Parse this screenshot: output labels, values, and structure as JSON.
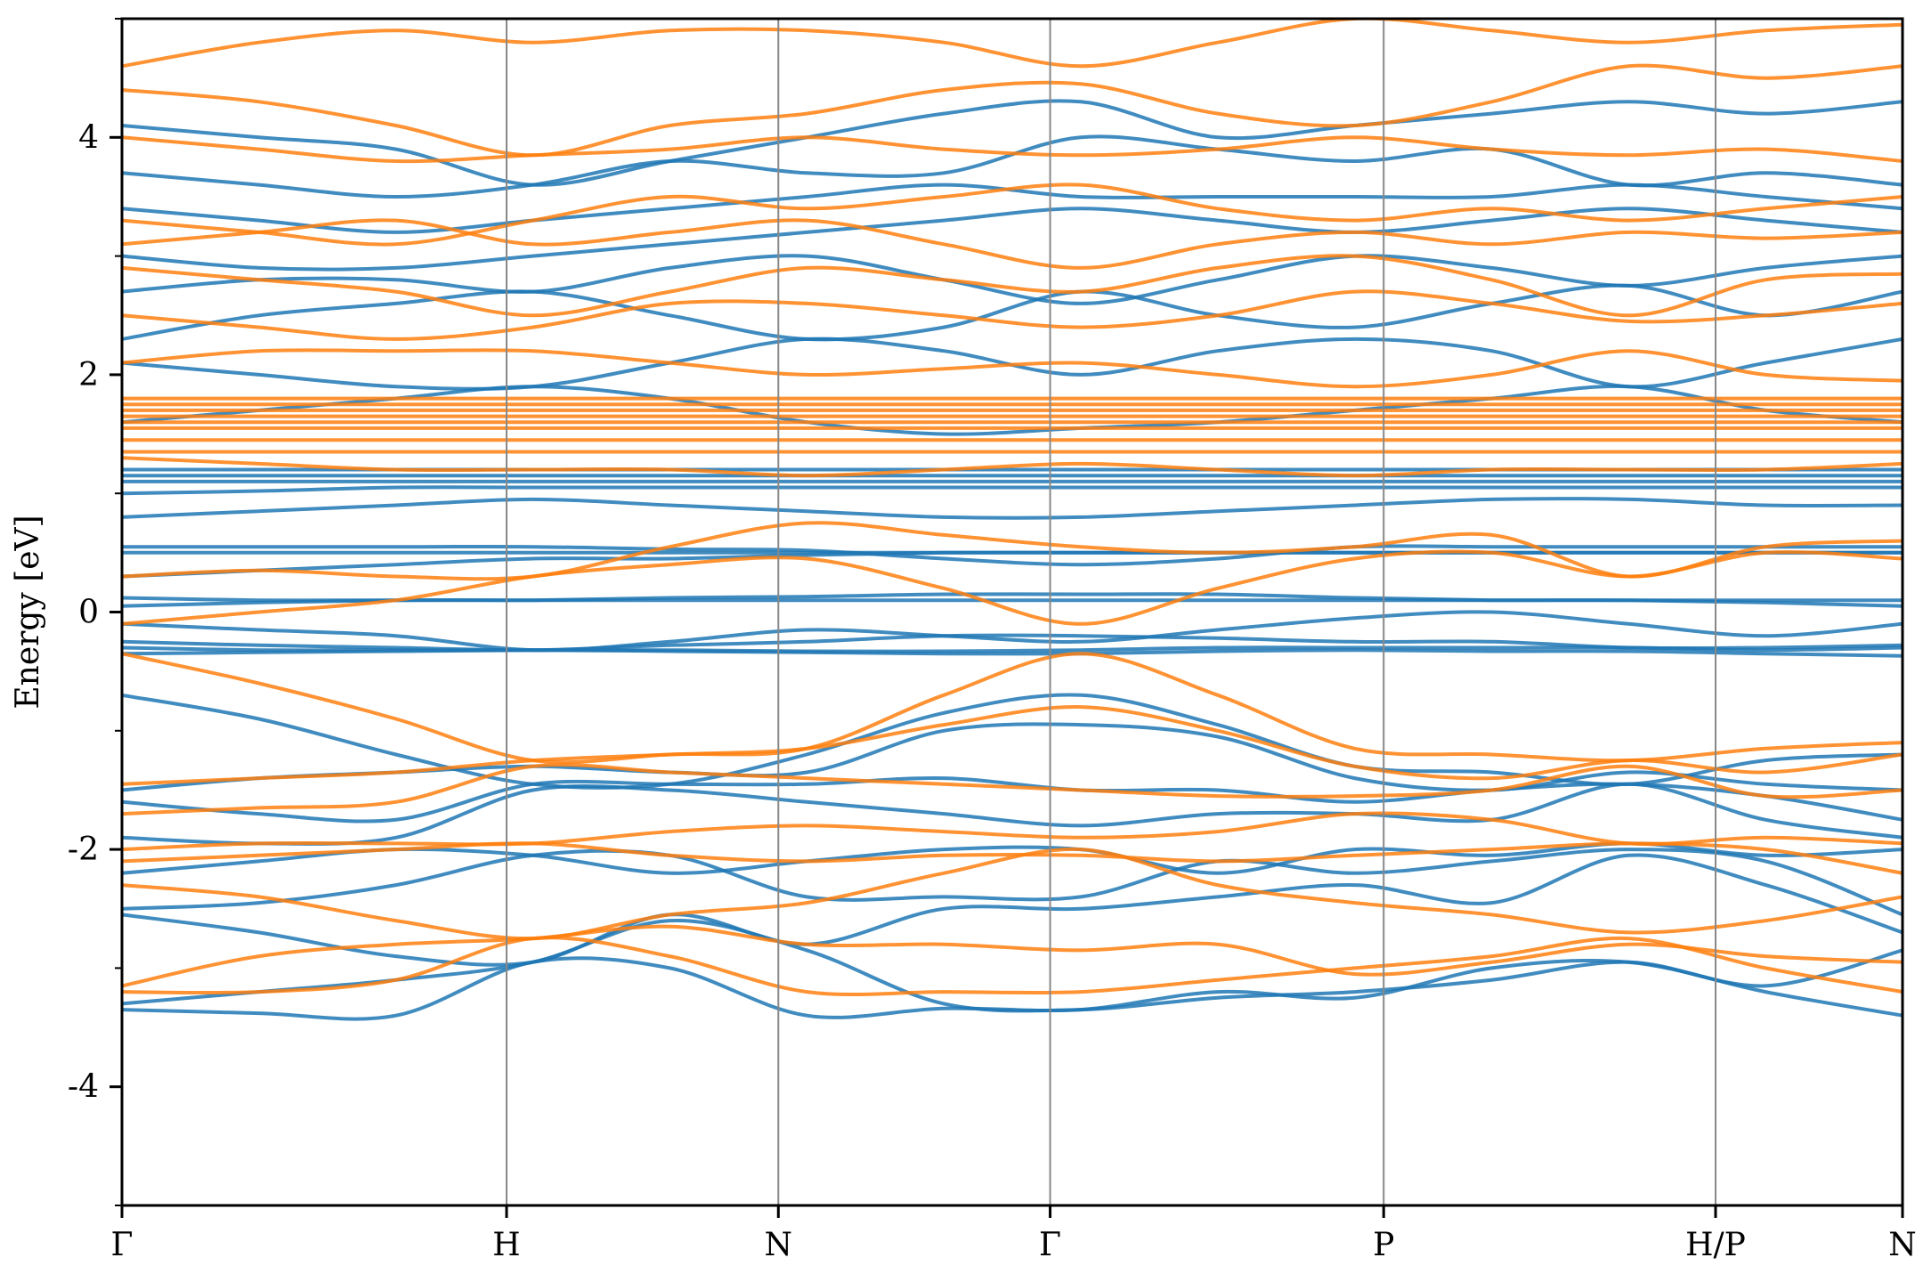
{
  "chart_data": {
    "type": "line",
    "title": "",
    "xlabel": "",
    "ylabel": "Energy [eV]",
    "ylim": [
      -5,
      5
    ],
    "xlim": [
      0,
      2162
    ],
    "grid": false,
    "legend": "none",
    "yticks": [
      {
        "value": -4,
        "label": "-4"
      },
      {
        "value": -2,
        "label": "-2"
      },
      {
        "value": 0,
        "label": "0"
      },
      {
        "value": 2,
        "label": "2"
      },
      {
        "value": 4,
        "label": "4"
      }
    ],
    "yticks_minor": [
      -5,
      -3,
      -1,
      1,
      3,
      5
    ],
    "kpoints": [
      {
        "label": "Γ",
        "x": 0
      },
      {
        "label": "H",
        "x": 467
      },
      {
        "label": "N",
        "x": 797
      },
      {
        "label": "Γ",
        "x": 1127
      },
      {
        "label": "P",
        "x": 1532
      },
      {
        "label": "H/P",
        "x": 1935
      },
      {
        "label": "N",
        "x": 2162
      }
    ],
    "colors": {
      "spin_up": "#1f77b4",
      "spin_down": "#ff7f0e",
      "separator": "#888888"
    },
    "series": [
      {
        "spin": "up",
        "bands": [
          [
            -3.35,
            -3.38,
            -3.4,
            -2.95,
            -3.0,
            -3.4,
            -3.34,
            -3.35,
            -3.2,
            -3.25,
            -3.0,
            -2.95,
            -3.2,
            -3.4
          ],
          [
            -3.3,
            -3.2,
            -3.1,
            -2.95,
            -2.6,
            -2.85,
            -3.3,
            -3.35,
            -3.25,
            -3.2,
            -3.1,
            -2.95,
            -3.15,
            -2.85
          ],
          [
            -2.55,
            -2.7,
            -2.9,
            -2.95,
            -2.55,
            -2.8,
            -2.5,
            -2.5,
            -2.4,
            -2.3,
            -2.45,
            -2.05,
            -2.3,
            -2.7
          ],
          [
            -2.5,
            -2.45,
            -2.3,
            -2.05,
            -2.05,
            -2.4,
            -2.4,
            -2.4,
            -2.1,
            -2.2,
            -2.1,
            -2.0,
            -2.1,
            -2.55
          ],
          [
            -2.2,
            -2.1,
            -2.0,
            -2.05,
            -2.2,
            -2.1,
            -2.0,
            -2.0,
            -2.2,
            -2.0,
            -2.05,
            -1.95,
            -2.05,
            -2.0
          ],
          [
            -1.9,
            -1.95,
            -1.9,
            -1.5,
            -1.5,
            -1.6,
            -1.7,
            -1.8,
            -1.7,
            -1.7,
            -1.75,
            -1.45,
            -1.75,
            -1.9
          ],
          [
            -1.6,
            -1.7,
            -1.75,
            -1.45,
            -1.45,
            -1.45,
            -1.4,
            -1.5,
            -1.5,
            -1.6,
            -1.5,
            -1.45,
            -1.55,
            -1.75
          ],
          [
            -1.5,
            -1.4,
            -1.35,
            -1.3,
            -1.35,
            -1.35,
            -1.0,
            -0.95,
            -1.05,
            -1.4,
            -1.5,
            -1.35,
            -1.45,
            -1.5
          ],
          [
            -0.7,
            -0.9,
            -1.2,
            -1.45,
            -1.45,
            -1.2,
            -0.85,
            -0.7,
            -0.95,
            -1.3,
            -1.35,
            -1.45,
            -1.25,
            -1.2
          ],
          [
            -0.35,
            -0.34,
            -0.33,
            -0.32,
            -0.33,
            -0.34,
            -0.35,
            -0.35,
            -0.33,
            -0.32,
            -0.33,
            -0.33,
            -0.35,
            -0.37
          ],
          [
            -0.3,
            -0.32,
            -0.32,
            -0.32,
            -0.32,
            -0.33,
            -0.33,
            -0.32,
            -0.3,
            -0.3,
            -0.3,
            -0.3,
            -0.32,
            -0.3
          ],
          [
            -0.25,
            -0.28,
            -0.3,
            -0.32,
            -0.28,
            -0.25,
            -0.2,
            -0.2,
            -0.22,
            -0.25,
            -0.25,
            -0.3,
            -0.3,
            -0.28
          ],
          [
            -0.1,
            -0.15,
            -0.2,
            -0.32,
            -0.25,
            -0.15,
            -0.2,
            -0.25,
            -0.15,
            -0.05,
            0.0,
            -0.1,
            -0.2,
            -0.1
          ],
          [
            0.05,
            0.08,
            0.1,
            0.1,
            0.1,
            0.1,
            0.1,
            0.1,
            0.1,
            0.1,
            0.1,
            0.1,
            0.1,
            0.1
          ],
          [
            0.12,
            0.1,
            0.1,
            0.1,
            0.12,
            0.13,
            0.15,
            0.15,
            0.15,
            0.12,
            0.1,
            0.1,
            0.08,
            0.05
          ],
          [
            0.3,
            0.35,
            0.4,
            0.45,
            0.45,
            0.48,
            0.5,
            0.5,
            0.5,
            0.5,
            0.5,
            0.5,
            0.5,
            0.5
          ],
          [
            0.5,
            0.5,
            0.5,
            0.5,
            0.5,
            0.5,
            0.5,
            0.5,
            0.5,
            0.5,
            0.5,
            0.5,
            0.5,
            0.5
          ],
          [
            0.55,
            0.55,
            0.55,
            0.55,
            0.53,
            0.52,
            0.45,
            0.4,
            0.45,
            0.55,
            0.55,
            0.55,
            0.55,
            0.55
          ],
          [
            0.8,
            0.85,
            0.9,
            0.95,
            0.9,
            0.85,
            0.8,
            0.8,
            0.85,
            0.9,
            0.95,
            0.95,
            0.9,
            0.9
          ],
          [
            1.0,
            1.02,
            1.05,
            1.05,
            1.05,
            1.05,
            1.05,
            1.05,
            1.05,
            1.05,
            1.05,
            1.05,
            1.05,
            1.05
          ],
          [
            1.1,
            1.1,
            1.1,
            1.1,
            1.1,
            1.1,
            1.1,
            1.1,
            1.1,
            1.1,
            1.1,
            1.1,
            1.1,
            1.1
          ],
          [
            1.15,
            1.15,
            1.15,
            1.15,
            1.15,
            1.15,
            1.15,
            1.15,
            1.15,
            1.15,
            1.15,
            1.15,
            1.15,
            1.15
          ],
          [
            1.2,
            1.2,
            1.2,
            1.2,
            1.2,
            1.2,
            1.2,
            1.2,
            1.2,
            1.2,
            1.2,
            1.2,
            1.2,
            1.2
          ],
          [
            1.6,
            1.7,
            1.8,
            1.9,
            1.8,
            1.6,
            1.5,
            1.55,
            1.6,
            1.7,
            1.8,
            1.9,
            1.7,
            1.6
          ],
          [
            2.1,
            2.0,
            1.9,
            1.9,
            2.1,
            2.3,
            2.2,
            2.0,
            2.2,
            2.3,
            2.2,
            1.9,
            2.1,
            2.3
          ],
          [
            2.3,
            2.5,
            2.6,
            2.7,
            2.5,
            2.3,
            2.4,
            2.7,
            2.5,
            2.4,
            2.6,
            2.75,
            2.5,
            2.7
          ],
          [
            2.7,
            2.8,
            2.8,
            2.7,
            2.9,
            3.0,
            2.8,
            2.6,
            2.8,
            3.0,
            2.9,
            2.75,
            2.9,
            3.0
          ],
          [
            3.0,
            2.9,
            2.9,
            3.0,
            3.1,
            3.2,
            3.3,
            3.4,
            3.3,
            3.2,
            3.3,
            3.4,
            3.3,
            3.2
          ],
          [
            3.4,
            3.3,
            3.2,
            3.3,
            3.4,
            3.5,
            3.6,
            3.5,
            3.5,
            3.5,
            3.5,
            3.6,
            3.5,
            3.4
          ],
          [
            3.7,
            3.6,
            3.5,
            3.6,
            3.8,
            3.7,
            3.7,
            4.0,
            3.9,
            3.8,
            3.9,
            3.6,
            3.7,
            3.6
          ],
          [
            4.1,
            4.0,
            3.9,
            3.6,
            3.8,
            4.0,
            4.2,
            4.3,
            4.0,
            4.1,
            4.2,
            4.3,
            4.2,
            4.3
          ]
        ]
      },
      {
        "spin": "down",
        "bands": [
          [
            -3.2,
            -3.2,
            -3.1,
            -2.75,
            -2.9,
            -3.2,
            -3.2,
            -3.2,
            -3.1,
            -3.0,
            -2.9,
            -2.75,
            -3.0,
            -3.2
          ],
          [
            -3.15,
            -2.9,
            -2.8,
            -2.75,
            -2.65,
            -2.8,
            -2.8,
            -2.85,
            -2.8,
            -3.05,
            -2.95,
            -2.8,
            -2.9,
            -2.95
          ],
          [
            -2.3,
            -2.4,
            -2.6,
            -2.75,
            -2.55,
            -2.45,
            -2.2,
            -2.0,
            -2.3,
            -2.45,
            -2.55,
            -2.7,
            -2.6,
            -2.4
          ],
          [
            -2.1,
            -2.05,
            -2.0,
            -1.95,
            -2.05,
            -2.1,
            -2.05,
            -2.05,
            -2.1,
            -2.05,
            -2.0,
            -1.95,
            -2.0,
            -2.2
          ],
          [
            -2.0,
            -1.95,
            -1.95,
            -1.95,
            -1.85,
            -1.8,
            -1.85,
            -1.9,
            -1.85,
            -1.7,
            -1.75,
            -1.95,
            -1.9,
            -1.95
          ],
          [
            -1.7,
            -1.65,
            -1.6,
            -1.3,
            -1.35,
            -1.4,
            -1.45,
            -1.5,
            -1.55,
            -1.55,
            -1.5,
            -1.3,
            -1.55,
            -1.5
          ],
          [
            -1.45,
            -1.4,
            -1.35,
            -1.25,
            -1.2,
            -1.15,
            -0.95,
            -0.8,
            -1.0,
            -1.3,
            -1.4,
            -1.25,
            -1.35,
            -1.2
          ],
          [
            -0.35,
            -0.6,
            -0.9,
            -1.25,
            -1.2,
            -1.15,
            -0.7,
            -0.35,
            -0.7,
            -1.15,
            -1.2,
            -1.25,
            -1.15,
            -1.1
          ],
          [
            -0.1,
            0.0,
            0.1,
            0.3,
            0.4,
            0.45,
            0.2,
            -0.1,
            0.2,
            0.45,
            0.5,
            0.3,
            0.5,
            0.45
          ],
          [
            0.3,
            0.35,
            0.3,
            0.3,
            0.55,
            0.75,
            0.65,
            0.55,
            0.5,
            0.55,
            0.65,
            0.3,
            0.55,
            0.6
          ],
          [
            1.3,
            1.25,
            1.2,
            1.2,
            1.2,
            1.15,
            1.2,
            1.25,
            1.2,
            1.15,
            1.2,
            1.2,
            1.2,
            1.25
          ],
          [
            1.35,
            1.35,
            1.35,
            1.35,
            1.35,
            1.35,
            1.35,
            1.35,
            1.35,
            1.35,
            1.35,
            1.35,
            1.35,
            1.35
          ],
          [
            1.45,
            1.45,
            1.45,
            1.45,
            1.45,
            1.45,
            1.45,
            1.45,
            1.45,
            1.45,
            1.45,
            1.45,
            1.45,
            1.45
          ],
          [
            1.55,
            1.55,
            1.55,
            1.55,
            1.55,
            1.55,
            1.55,
            1.55,
            1.55,
            1.55,
            1.55,
            1.55,
            1.55,
            1.55
          ],
          [
            1.6,
            1.6,
            1.6,
            1.6,
            1.6,
            1.6,
            1.6,
            1.6,
            1.6,
            1.6,
            1.6,
            1.6,
            1.6,
            1.6
          ],
          [
            1.65,
            1.65,
            1.65,
            1.65,
            1.65,
            1.65,
            1.65,
            1.65,
            1.65,
            1.65,
            1.65,
            1.65,
            1.65,
            1.65
          ],
          [
            1.7,
            1.7,
            1.7,
            1.7,
            1.7,
            1.7,
            1.7,
            1.7,
            1.7,
            1.7,
            1.7,
            1.7,
            1.7,
            1.7
          ],
          [
            1.75,
            1.75,
            1.75,
            1.75,
            1.75,
            1.75,
            1.75,
            1.75,
            1.75,
            1.75,
            1.75,
            1.75,
            1.75,
            1.75
          ],
          [
            1.8,
            1.8,
            1.8,
            1.8,
            1.8,
            1.8,
            1.8,
            1.8,
            1.8,
            1.8,
            1.8,
            1.8,
            1.8,
            1.8
          ],
          [
            2.1,
            2.2,
            2.2,
            2.2,
            2.1,
            2.0,
            2.05,
            2.1,
            2.0,
            1.9,
            2.0,
            2.2,
            2.0,
            1.95
          ],
          [
            2.5,
            2.4,
            2.3,
            2.4,
            2.6,
            2.6,
            2.5,
            2.4,
            2.5,
            2.7,
            2.6,
            2.45,
            2.5,
            2.6
          ],
          [
            2.9,
            2.8,
            2.7,
            2.5,
            2.7,
            2.9,
            2.8,
            2.7,
            2.9,
            3.0,
            2.8,
            2.5,
            2.8,
            2.85
          ],
          [
            3.1,
            3.2,
            3.3,
            3.1,
            3.2,
            3.3,
            3.1,
            2.9,
            3.1,
            3.2,
            3.1,
            3.2,
            3.15,
            3.2
          ],
          [
            3.3,
            3.2,
            3.1,
            3.3,
            3.5,
            3.4,
            3.5,
            3.6,
            3.4,
            3.3,
            3.4,
            3.3,
            3.4,
            3.5
          ],
          [
            4.0,
            3.9,
            3.8,
            3.85,
            3.9,
            4.0,
            3.9,
            3.85,
            3.9,
            4.0,
            3.9,
            3.85,
            3.9,
            3.8
          ],
          [
            4.4,
            4.3,
            4.1,
            3.85,
            4.1,
            4.2,
            4.4,
            4.45,
            4.2,
            4.1,
            4.3,
            4.6,
            4.5,
            4.6
          ],
          [
            4.6,
            4.8,
            4.9,
            4.8,
            4.9,
            4.9,
            4.8,
            4.6,
            4.8,
            5.0,
            4.9,
            4.8,
            4.9,
            4.95
          ]
        ]
      }
    ]
  }
}
